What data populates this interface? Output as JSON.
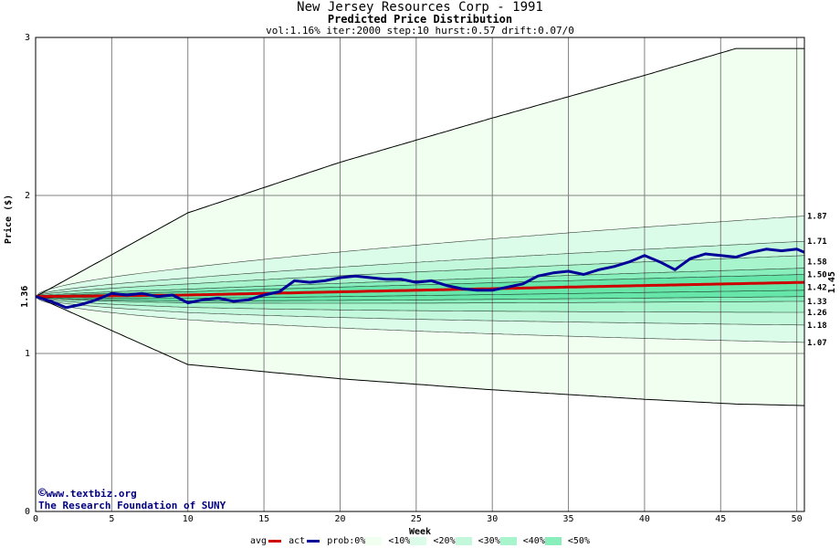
{
  "header": {
    "title": "New Jersey Resources Corp - 1991",
    "subtitle": "Predicted Price Distribution",
    "params": "vol:1.16% iter:2000 step:10 hurst:0.57 drift:0.07/0"
  },
  "credit": {
    "line1": "www.textbiz.org",
    "line2": "The Research Foundation of SUNY",
    "copyright_symbol": "©"
  },
  "legend": {
    "avg": "avg",
    "act": "act",
    "prob": "prob:0%",
    "b10": "<10%",
    "b20": "<20%",
    "b30": "<30%",
    "b40": "<40%",
    "b50": "<50%"
  },
  "colors": {
    "avg_line": "#cc0000",
    "act_line": "#000099",
    "band_0": "#f0fff0",
    "band_10": "#dcfcea",
    "band_20": "#c4f8dc",
    "band_30": "#a8f4cc",
    "band_40": "#88eebc",
    "band_50": "#66e6a8",
    "grid": "#808080"
  },
  "chart_data": {
    "type": "area",
    "title": "New Jersey Resources Corp - 1991",
    "subtitle": "Predicted Price Distribution",
    "xlabel": "Week",
    "ylabel": "Price ($)",
    "xlim": [
      0,
      50.5
    ],
    "ylim": [
      0,
      3
    ],
    "x_ticks": [
      0,
      5,
      10,
      15,
      20,
      25,
      30,
      35,
      40,
      45,
      50
    ],
    "y_ticks": [
      0,
      1,
      2,
      3
    ],
    "grid": true,
    "start_value_label": "1.36",
    "end_value_label": "1.45",
    "start_price": 1.36,
    "right_labels": [
      "1.87",
      "1.71",
      "1.58",
      "1.50",
      "1.42",
      "1.33",
      "1.26",
      "1.18",
      "1.07"
    ],
    "outer_band": {
      "x": [
        0,
        10,
        20,
        30,
        40,
        46,
        50.5
      ],
      "upper": [
        1.36,
        1.89,
        2.21,
        2.49,
        2.76,
        2.93,
        2.93
      ],
      "lower": [
        1.36,
        0.93,
        0.84,
        0.77,
        0.71,
        0.68,
        0.67
      ]
    },
    "percentile_lines": [
      1.87,
      1.71,
      1.62,
      1.54,
      1.5,
      1.45,
      1.4,
      1.36,
      1.33,
      1.26,
      1.18,
      1.07
    ],
    "avg_series": {
      "name": "avg",
      "x": [
        0,
        10,
        20,
        30,
        40,
        50.5
      ],
      "values": [
        1.36,
        1.37,
        1.39,
        1.41,
        1.43,
        1.45
      ]
    },
    "act_series": {
      "name": "act",
      "x": [
        0,
        1,
        2,
        3,
        4,
        5,
        6,
        7,
        8,
        9,
        10,
        11,
        12,
        13,
        14,
        15,
        16,
        17,
        18,
        19,
        20,
        21,
        22,
        23,
        24,
        25,
        26,
        27,
        28,
        29,
        30,
        31,
        32,
        33,
        34,
        35,
        36,
        37,
        38,
        39,
        40,
        41,
        42,
        43,
        44,
        45,
        46,
        47,
        48,
        49,
        50,
        50.5
      ],
      "values": [
        1.36,
        1.33,
        1.29,
        1.31,
        1.34,
        1.38,
        1.37,
        1.38,
        1.36,
        1.37,
        1.32,
        1.34,
        1.35,
        1.33,
        1.34,
        1.37,
        1.39,
        1.46,
        1.45,
        1.46,
        1.48,
        1.49,
        1.48,
        1.47,
        1.47,
        1.45,
        1.46,
        1.43,
        1.41,
        1.4,
        1.4,
        1.42,
        1.44,
        1.49,
        1.51,
        1.52,
        1.5,
        1.53,
        1.55,
        1.58,
        1.62,
        1.58,
        1.53,
        1.6,
        1.63,
        1.62,
        1.61,
        1.64,
        1.66,
        1.65,
        1.66,
        1.64
      ]
    }
  }
}
